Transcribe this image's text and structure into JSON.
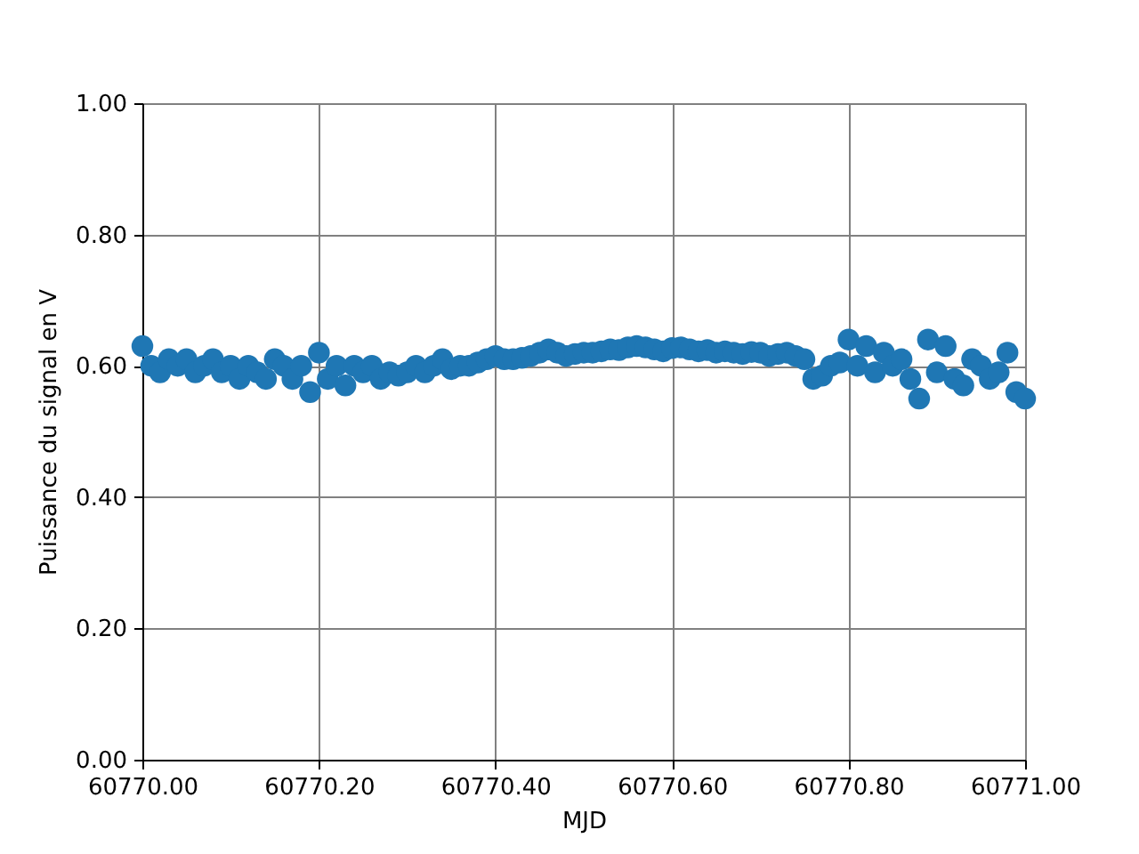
{
  "chart_data": {
    "type": "scatter",
    "xlabel": "MJD",
    "ylabel": "Puissance du signal en V",
    "x": [
      60770.0,
      60770.01,
      60770.02,
      60770.03,
      60770.04,
      60770.05,
      60770.06,
      60770.07,
      60770.08,
      60770.09,
      60770.1,
      60770.11,
      60770.12,
      60770.13,
      60770.14,
      60770.15,
      60770.16,
      60770.17,
      60770.18,
      60770.19,
      60770.2,
      60770.21,
      60770.22,
      60770.23,
      60770.24,
      60770.25,
      60770.26,
      60770.27,
      60770.28,
      60770.29,
      60770.3,
      60770.31,
      60770.32,
      60770.33,
      60770.34,
      60770.35,
      60770.36,
      60770.37,
      60770.38,
      60770.39,
      60770.4,
      60770.41,
      60770.42,
      60770.43,
      60770.44,
      60770.45,
      60770.46,
      60770.47,
      60770.48,
      60770.49,
      60770.5,
      60770.51,
      60770.52,
      60770.53,
      60770.54,
      60770.55,
      60770.56,
      60770.57,
      60770.58,
      60770.59,
      60770.6,
      60770.61,
      60770.62,
      60770.63,
      60770.64,
      60770.65,
      60770.66,
      60770.67,
      60770.68,
      60770.69,
      60770.7,
      60770.71,
      60770.72,
      60770.73,
      60770.74,
      60770.75,
      60770.76,
      60770.77,
      60770.78,
      60770.79,
      60770.8,
      60770.81,
      60770.82,
      60770.83,
      60770.84,
      60770.85,
      60770.86,
      60770.87,
      60770.88,
      60770.89,
      60770.9,
      60770.91,
      60770.92,
      60770.93,
      60770.94,
      60770.95,
      60770.96,
      60770.97,
      60770.98,
      60770.99,
      60771.0
    ],
    "series": [
      {
        "color": "#1f77b4",
        "values": [
          0.63,
          0.6,
          0.59,
          0.61,
          0.6,
          0.61,
          0.59,
          0.6,
          0.61,
          0.59,
          0.6,
          0.58,
          0.6,
          0.59,
          0.58,
          0.61,
          0.6,
          0.58,
          0.6,
          0.56,
          0.62,
          0.58,
          0.6,
          0.57,
          0.6,
          0.59,
          0.6,
          0.58,
          0.59,
          0.585,
          0.59,
          0.6,
          0.59,
          0.6,
          0.61,
          0.595,
          0.6,
          0.6,
          0.605,
          0.61,
          0.615,
          0.61,
          0.61,
          0.612,
          0.615,
          0.62,
          0.625,
          0.62,
          0.615,
          0.618,
          0.62,
          0.62,
          0.622,
          0.625,
          0.624,
          0.628,
          0.63,
          0.628,
          0.625,
          0.622,
          0.627,
          0.628,
          0.625,
          0.622,
          0.624,
          0.62,
          0.622,
          0.62,
          0.618,
          0.621,
          0.62,
          0.615,
          0.618,
          0.62,
          0.615,
          0.61,
          0.58,
          0.585,
          0.6,
          0.605,
          0.64,
          0.6,
          0.63,
          0.59,
          0.62,
          0.6,
          0.61,
          0.58,
          0.55,
          0.64,
          0.59,
          0.63,
          0.58,
          0.57,
          0.61,
          0.6,
          0.58,
          0.59,
          0.62,
          0.56,
          0.55
        ]
      }
    ],
    "marker": "circle",
    "grid": true,
    "xlim": [
      60770.0,
      60771.0
    ],
    "xticks": [
      {
        "value": 60770.0,
        "label": "60770.00"
      },
      {
        "value": 60770.2,
        "label": "60770.20"
      },
      {
        "value": 60770.4,
        "label": "60770.40"
      },
      {
        "value": 60770.6,
        "label": "60770.60"
      },
      {
        "value": 60770.8,
        "label": "60770.80"
      },
      {
        "value": 60771.0,
        "label": "60771.00"
      }
    ],
    "ylim": [
      0.0,
      1.0
    ],
    "yticks": [
      {
        "value": 0.0,
        "label": "0.00"
      },
      {
        "value": 0.2,
        "label": "0.20"
      },
      {
        "value": 0.4,
        "label": "0.40"
      },
      {
        "value": 0.6,
        "label": "0.60"
      },
      {
        "value": 0.8,
        "label": "0.80"
      },
      {
        "value": 1.0,
        "label": "1.00"
      }
    ]
  }
}
